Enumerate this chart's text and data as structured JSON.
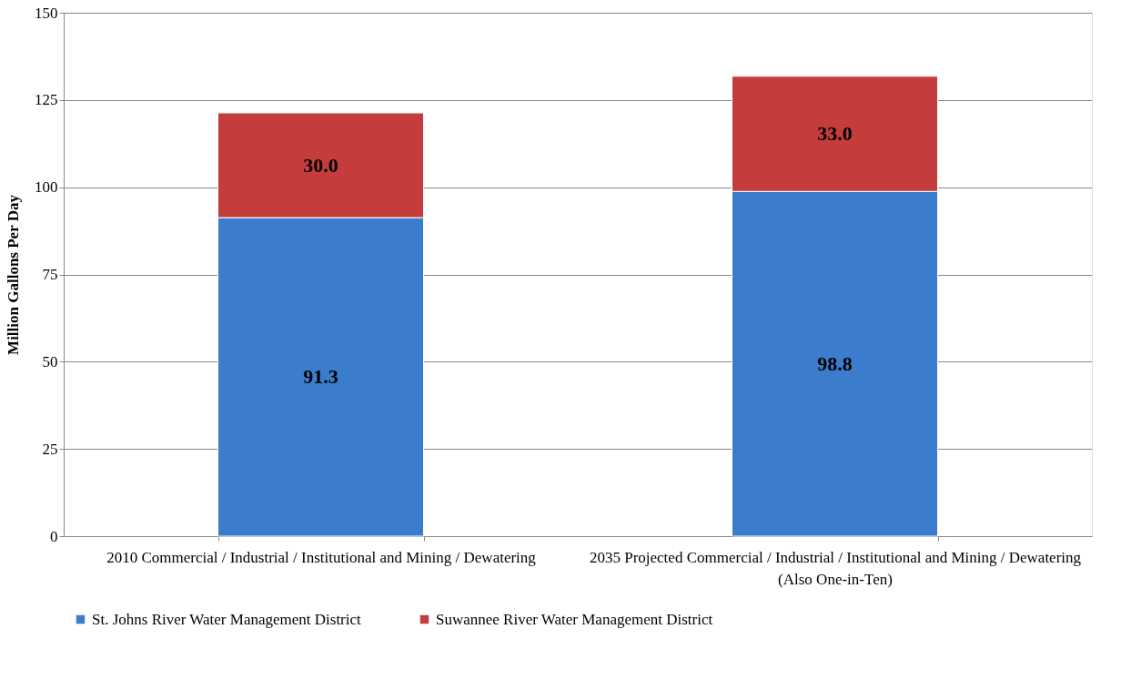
{
  "chart_data": {
    "type": "bar",
    "stacked": true,
    "ylabel": "Million Gallons Per Day",
    "categories": [
      "2010 Commercial / Industrial / Institutional and Mining / Dewatering",
      "2035 Projected Commercial / Industrial / Institutional and Mining / Dewatering (Also One-in-Ten)"
    ],
    "series": [
      {
        "name": "St. Johns River Water Management District",
        "color": "#3b7ccc",
        "values": [
          91.3,
          98.8
        ]
      },
      {
        "name": "Suwannee River Water Management District",
        "color": "#c43c3c",
        "values": [
          30.0,
          33.0
        ]
      }
    ],
    "ylim": [
      0,
      150
    ],
    "yticks": [
      0,
      25,
      50,
      75,
      100,
      125,
      150
    ],
    "grid": "y",
    "legend": "bottom",
    "value_labels": [
      [
        "91.3",
        "98.8"
      ],
      [
        "30.0",
        "33.0"
      ]
    ]
  }
}
